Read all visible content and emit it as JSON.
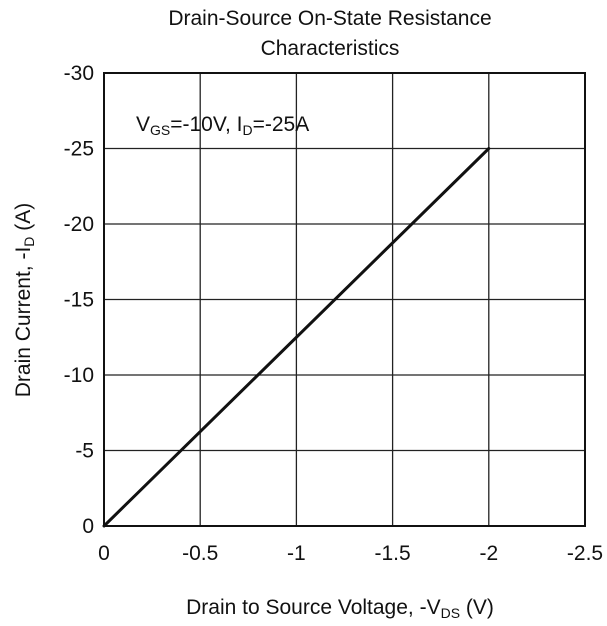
{
  "chart_data": {
    "type": "line",
    "title_line1": "Drain-Source On-State Resistance",
    "title_line2": "Characteristics",
    "xlabel": {
      "prefix": "Drain to Source Voltage, -V",
      "sub": "DS",
      "suffix": " (V)"
    },
    "ylabel": {
      "prefix": "Drain Current, -I",
      "sub": "D",
      "suffix": " (A)"
    },
    "annotation": {
      "v": "V",
      "v_sub": "GS",
      "v_rest": "=-10V, I",
      "i_sub": "D",
      "i_rest": "=-25A"
    },
    "xlim": [
      0,
      -2.5
    ],
    "ylim": [
      0,
      -30
    ],
    "x_ticks": [
      {
        "value": 0,
        "label": "0"
      },
      {
        "value": -0.5,
        "label": "-0.5"
      },
      {
        "value": -1,
        "label": "-1"
      },
      {
        "value": -1.5,
        "label": "-1.5"
      },
      {
        "value": -2,
        "label": "-2"
      },
      {
        "value": -2.5,
        "label": "-2.5"
      }
    ],
    "y_ticks": [
      {
        "value": 0,
        "label": "0"
      },
      {
        "value": -5,
        "label": "-5"
      },
      {
        "value": -10,
        "label": "-10"
      },
      {
        "value": -15,
        "label": "-15"
      },
      {
        "value": -20,
        "label": "-20"
      },
      {
        "value": -25,
        "label": "-25"
      },
      {
        "value": -30,
        "label": "-30"
      }
    ],
    "grid": true,
    "series": [
      {
        "x": [
          0,
          -2
        ],
        "y": [
          0,
          -25
        ]
      }
    ]
  }
}
